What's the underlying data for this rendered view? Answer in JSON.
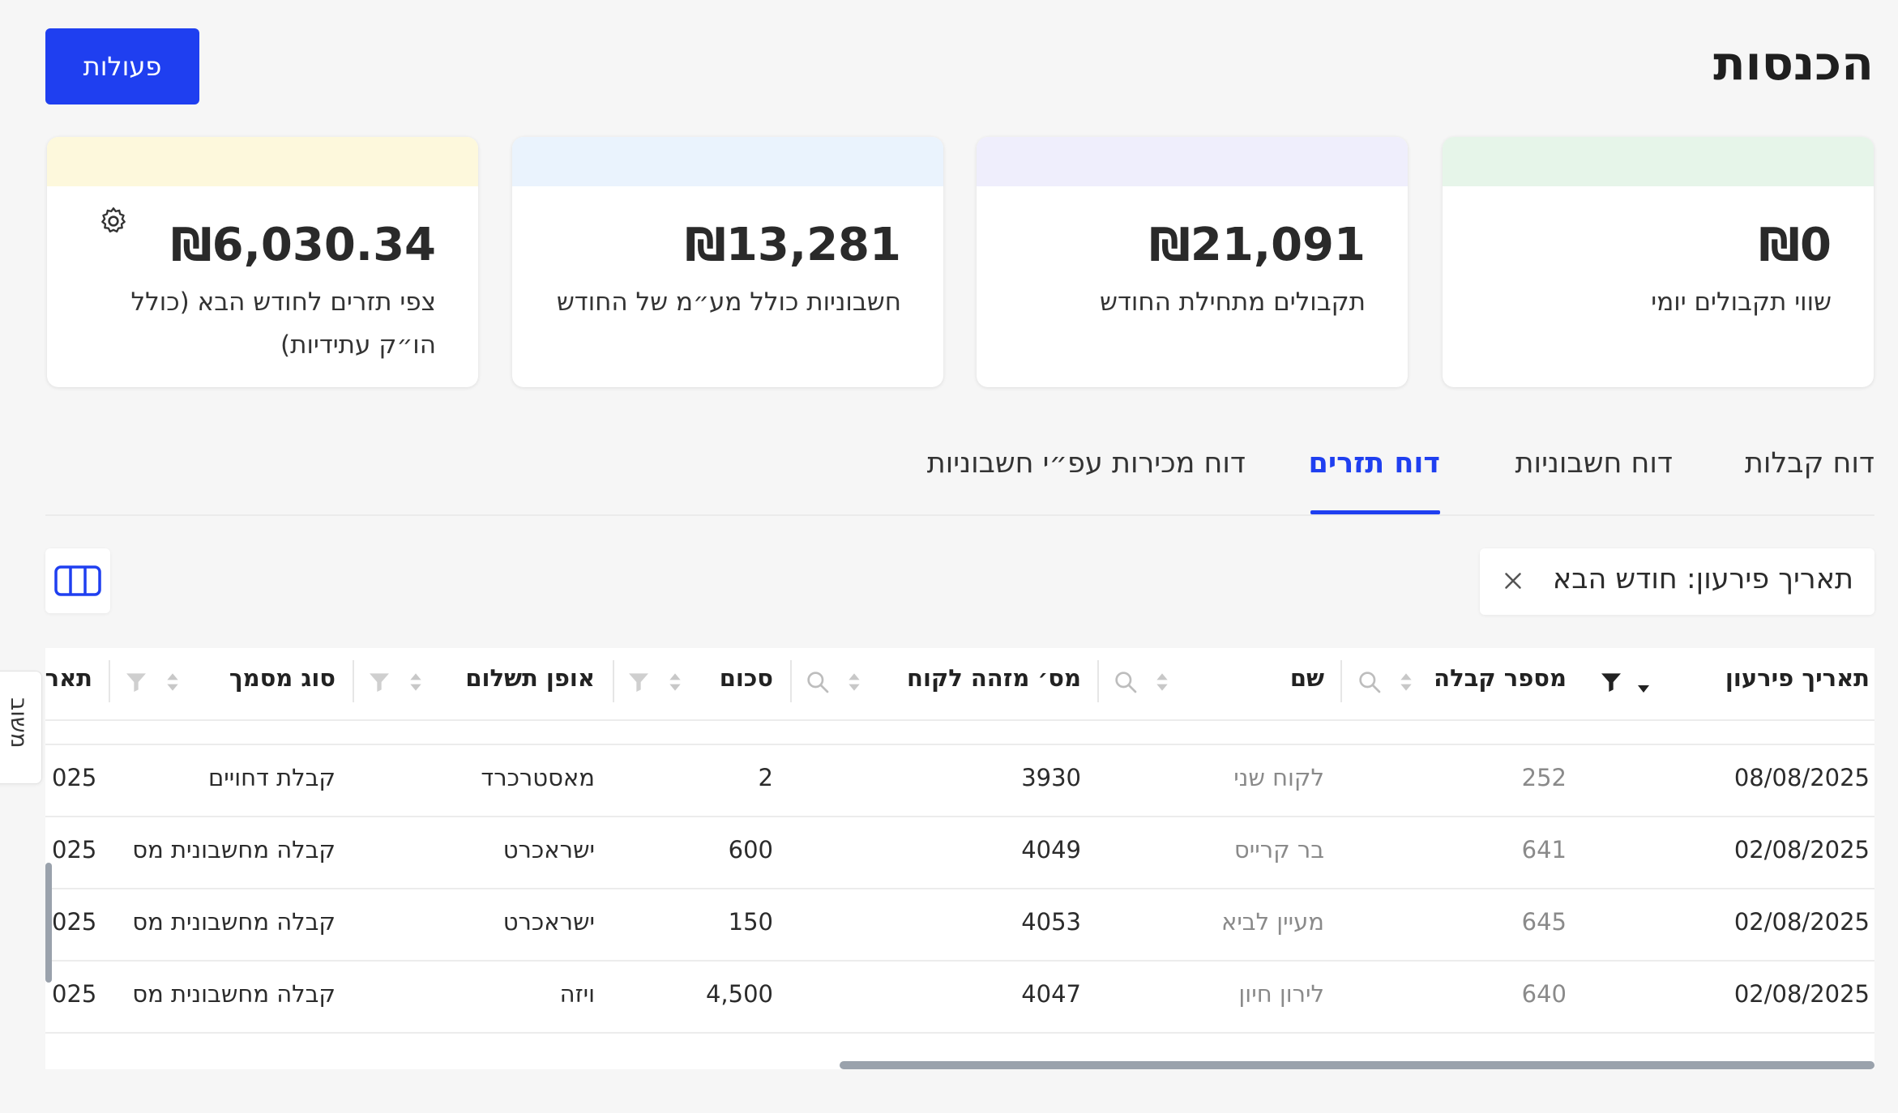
{
  "header": {
    "title": "הכנסות",
    "actions_label": "פעולות"
  },
  "cards": [
    {
      "amount": "₪0",
      "label": "שווי תקבולים יומי",
      "band_color": "#e6f5e9"
    },
    {
      "amount": "₪21,091",
      "label": "תקבולים מתחילת החודש",
      "band_color": "#efeefc"
    },
    {
      "amount": "₪13,281",
      "label": "חשבוניות כולל מע״מ של החודש",
      "band_color": "#eaf3fd"
    },
    {
      "amount": "₪6,030.34",
      "label": "צפי תזרים לחודש הבא (כולל הו״ק עתידיות)",
      "band_color": "#fdf8dc"
    }
  ],
  "tabs": [
    {
      "label": "דוח קבלות",
      "active": false
    },
    {
      "label": "דוח חשבוניות",
      "active": false
    },
    {
      "label": "דוח תזרים",
      "active": true
    },
    {
      "label": "דוח מכירות עפ״י חשבוניות",
      "active": false
    }
  ],
  "filter_chip": {
    "label": "תאריך פירעון: חודש הבא"
  },
  "side_tab": {
    "label": "משוב"
  },
  "table": {
    "columns": [
      "תאריך פירעון",
      "מספר קבלה",
      "שם",
      "מס׳ מזהה לקוח",
      "סכום",
      "אופן תשלום",
      "סוג מסמך",
      "תאר"
    ],
    "rows": [
      {
        "due_date": "08/08/2025",
        "receipt_no": "252",
        "name": "לקוח שני",
        "customer_id": "3930",
        "amount": "2",
        "payment_method": "מאסטרכרד",
        "doc_type": "קבלת דחויים",
        "date_partial": "025"
      },
      {
        "due_date": "02/08/2025",
        "receipt_no": "641",
        "name": "בר קרייס",
        "customer_id": "4049",
        "amount": "600",
        "payment_method": "ישראכרט",
        "doc_type": "קבלה מחשבונית מס",
        "date_partial": "025"
      },
      {
        "due_date": "02/08/2025",
        "receipt_no": "645",
        "name": "מעיין לביא",
        "customer_id": "4053",
        "amount": "150",
        "payment_method": "ישראכרט",
        "doc_type": "קבלה מחשבונית מס",
        "date_partial": "025"
      },
      {
        "due_date": "02/08/2025",
        "receipt_no": "640",
        "name": "לירון חיון",
        "customer_id": "4047",
        "amount": "4,500",
        "payment_method": "ויזה",
        "doc_type": "קבלה מחשבונית מס",
        "date_partial": "025"
      }
    ]
  },
  "colors": {
    "accent": "#1f3ff0",
    "background": "#f6f6f6"
  },
  "icons": [
    "gear-icon",
    "close-icon",
    "columns-icon",
    "filter-icon",
    "sort-icon",
    "search-icon"
  ]
}
